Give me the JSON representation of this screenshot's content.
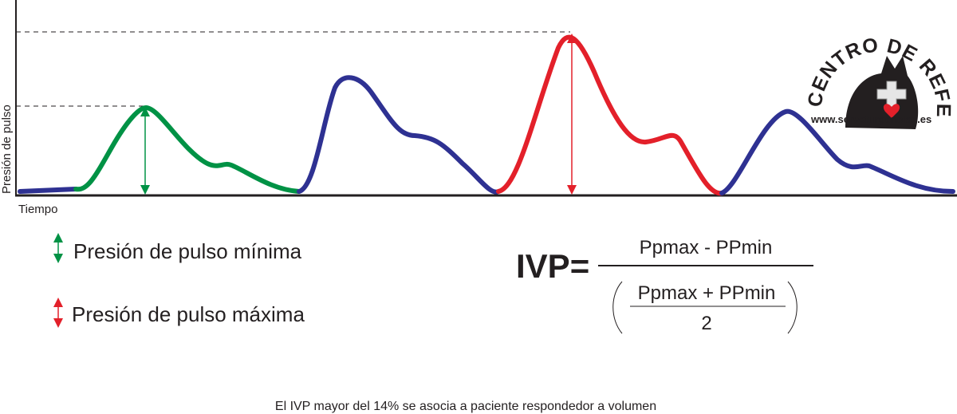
{
  "axis": {
    "y_label": "Presión de pulso",
    "x_label": "Tiempo"
  },
  "legend": [
    {
      "label": "Presión de pulso mínima"
    },
    {
      "label": "Presión de pulso máxima"
    }
  ],
  "formula": {
    "lhs": "IVP=",
    "numerator": "Ppmax - PPmin",
    "denominator_numerator": "Ppmax + PPmin",
    "denominator_denominator": "2"
  },
  "footnote": "El IVP mayor del 14% se asocia a paciente respondedor a volumen",
  "logo": {
    "arc_text": "CENTRO DE REFERENCIA",
    "url": "www.serveturgencias.es"
  }
}
